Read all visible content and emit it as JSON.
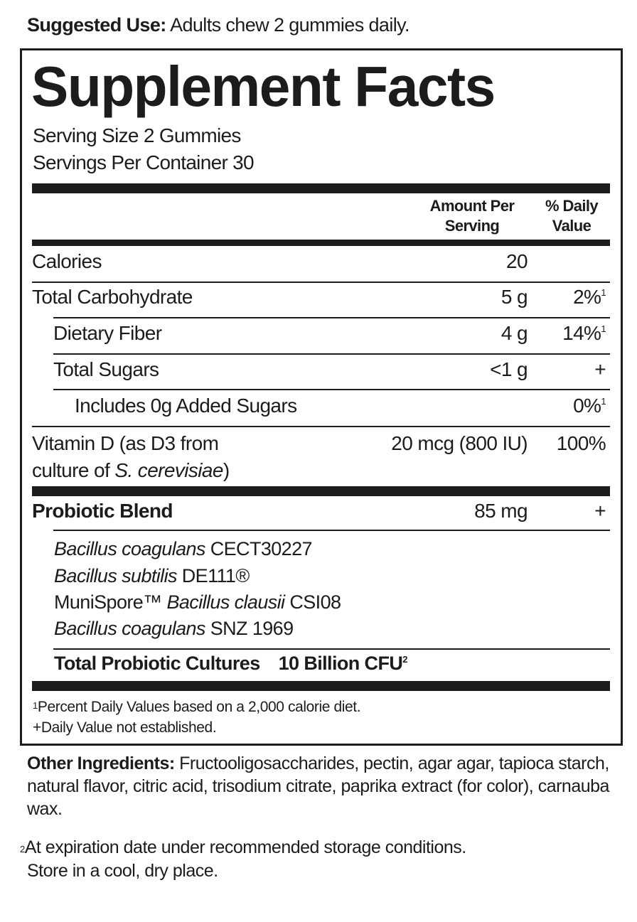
{
  "suggested_use": {
    "label": "Suggested Use:",
    "text": " Adults chew 2 gummies daily."
  },
  "title": "Supplement Facts",
  "serving_size": "Serving Size 2 Gummies",
  "servings_per_container": "Servings Per Container 30",
  "header": {
    "amount_line1": "Amount Per",
    "amount_line2": "Serving",
    "dv_line1": "% Daily",
    "dv_line2": "Value"
  },
  "rows": [
    {
      "label": "Calories",
      "amount": "20",
      "dv": "",
      "note": ""
    },
    {
      "label": "Total Carbohydrate",
      "amount": "5 g",
      "dv": "2%",
      "note": "1"
    },
    {
      "label": "Dietary Fiber",
      "amount": "4 g",
      "dv": "14%",
      "note": "1"
    },
    {
      "label": "Total Sugars",
      "amount": "<1 g",
      "dv": "+",
      "note": ""
    },
    {
      "label": "Includes 0g Added Sugars",
      "amount": "",
      "dv": "0%",
      "note": "1"
    }
  ],
  "vitamin_d": {
    "line1": "Vitamin D (as D3 from",
    "line2_a": "culture of ",
    "line2_italic": "S. cerevisiae",
    "line2_b": ")",
    "amount": "20 mcg (800 IU)",
    "dv": "100%"
  },
  "probiotic": {
    "label": "Probiotic Blend",
    "amount": "85 mg",
    "dv": "+"
  },
  "strains": [
    {
      "pre": "",
      "italic": "Bacillus coagulans",
      "post": " CECT30227"
    },
    {
      "pre": "",
      "italic": "Bacillus subtilis",
      "post": " DE111®"
    },
    {
      "pre": "MuniSpore™ ",
      "italic": "Bacillus clausii",
      "post": " CSI08"
    },
    {
      "pre": "",
      "italic": "Bacillus coagulans",
      "post": " SNZ 1969"
    }
  ],
  "total_cultures": {
    "label": "Total Probiotic Cultures",
    "amount": "10 Billion CFU",
    "note": "2"
  },
  "footnotes": {
    "f1_mark": "1",
    "f1": "Percent Daily Values based on a 2,000 calorie diet.",
    "f2": "+Daily Value not established."
  },
  "other_ingredients": {
    "label": "Other Ingredients:",
    "text": " Fructooligosaccharides, pectin, agar agar, tapioca starch, natural flavor, citric acid, trisodium citrate, paprika extract (for color), carnauba wax."
  },
  "expiration": {
    "mark": "2",
    "line1": "At expiration date under recommended storage conditions.",
    "line2": "Store in a cool, dry place."
  }
}
